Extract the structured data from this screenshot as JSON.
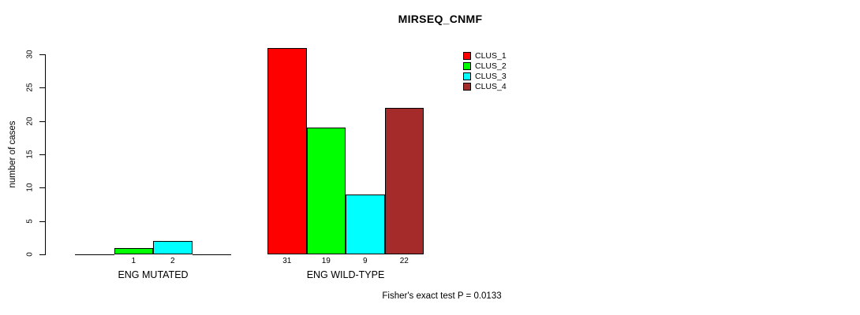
{
  "figure": {
    "title": "MIRSEQ_CNMF",
    "annotation": "Fisher's exact test P = 0.0133"
  },
  "chart_data": {
    "type": "bar",
    "title": "MIRSEQ_CNMF",
    "xlabel": "",
    "ylabel": "number of cases",
    "ylim": [
      0,
      30
    ],
    "yticks": [
      0,
      5,
      10,
      15,
      20,
      25,
      30
    ],
    "grid": false,
    "legend_position": "top-right",
    "categories": [
      "ENG MUTATED",
      "ENG WILD-TYPE"
    ],
    "series": [
      {
        "name": "CLUS_1",
        "color": "#FF0000",
        "values": [
          0,
          31
        ]
      },
      {
        "name": "CLUS_2",
        "color": "#00FF00",
        "values": [
          1,
          19
        ]
      },
      {
        "name": "CLUS_3",
        "color": "#00FFFF",
        "values": [
          2,
          9
        ]
      },
      {
        "name": "CLUS_4",
        "color": "#A52A2A",
        "values": [
          0,
          22
        ]
      }
    ],
    "bar_value_labels": [
      [
        "",
        "1",
        "2",
        ""
      ],
      [
        "31",
        "19",
        "9",
        "22"
      ]
    ],
    "annotation": "Fisher's exact test P = 0.0133"
  }
}
